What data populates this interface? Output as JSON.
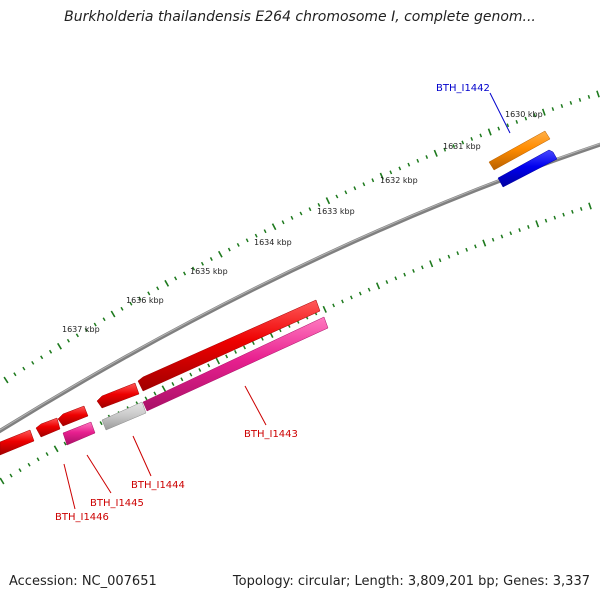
{
  "title": "Burkholderia thailandensis E264 chromosome I, complete genom...",
  "footer": {
    "accession": "Accession: NC_007651",
    "summary": "Topology: circular; Length: 3,809,201 bp; Genes: 3,337"
  },
  "scale_labels": [
    "1630 kbp",
    "1631 kbp",
    "1632 kbp",
    "1633 kbp",
    "1634 kbp",
    "1635 kbp",
    "1636 kbp",
    "1637 kbp"
  ],
  "genes": [
    {
      "name": "BTH_I1442",
      "color": "#0000cc"
    },
    {
      "name": "BTH_I1443",
      "color": "#cc0000"
    },
    {
      "name": "BTH_I1444",
      "color": "#cc0000"
    },
    {
      "name": "BTH_I1445",
      "color": "#cc0000"
    },
    {
      "name": "BTH_I1446",
      "color": "#cc0000"
    }
  ],
  "colors": {
    "backbone": "#808080",
    "ticks": "#1e7a1e",
    "cds_forward": "#ee0000",
    "gene_reverse": "#e8208f",
    "orange_feature": "#ff8c00",
    "blue_feature": "#0000ee",
    "grey_feature": "#c8c8c8"
  }
}
